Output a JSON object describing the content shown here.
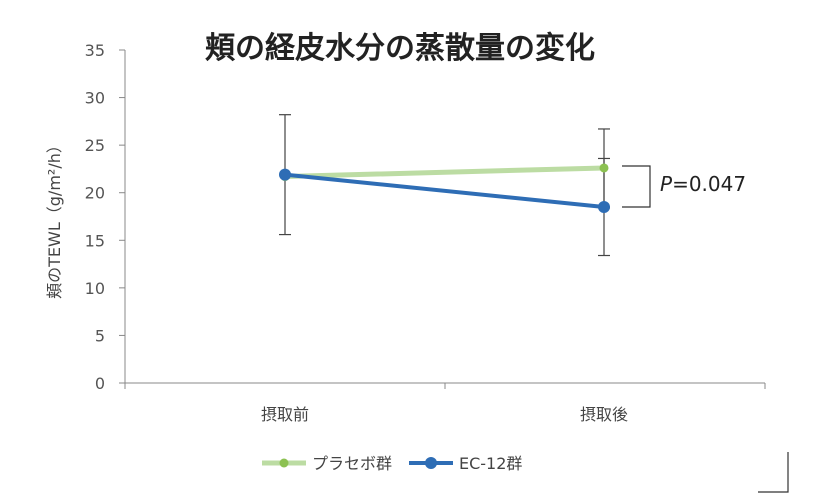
{
  "chart_data": {
    "type": "line",
    "title": "頬の経皮水分の蒸散量の変化",
    "ylabel": "頬のTEWL（g/m²/h）",
    "xlabel": "",
    "categories": [
      "摂取前",
      "摂取後"
    ],
    "ylim": [
      0,
      35
    ],
    "yticks": [
      0,
      5,
      10,
      15,
      20,
      25,
      30,
      35
    ],
    "grid": false,
    "legend_position": "bottom",
    "series": [
      {
        "name": "プラセボ群",
        "values": [
          21.7,
          22.6
        ],
        "error_low": [
          null,
          18.4
        ],
        "error_high": [
          null,
          26.7
        ],
        "color": "#bcdca3"
      },
      {
        "name": "EC-12群",
        "values": [
          21.9,
          18.5
        ],
        "error_low": [
          15.6,
          13.4
        ],
        "error_high": [
          28.2,
          23.6
        ],
        "color": "#2e6db5"
      }
    ],
    "annotation": {
      "italic": "P",
      "rest": "=0.047"
    }
  },
  "colors": {
    "axis": "#888888",
    "error_bar": "#444444",
    "bracket": "#333333",
    "green_dot": "#8cc152"
  }
}
